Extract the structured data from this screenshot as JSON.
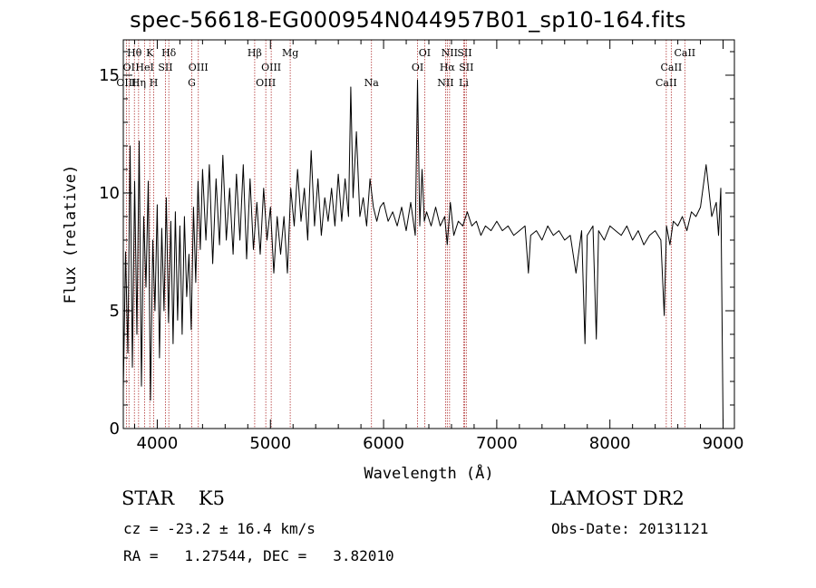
{
  "title": "spec-56618-EG000954N044957B01_sp10-164.fits",
  "info": {
    "class_line": "STAR    K5",
    "survey": "LAMOST DR2",
    "cz_line": "cz = -23.2 ± 16.4 km/s",
    "obs_date": "Obs-Date: 20131121",
    "coord_line": "RA =   1.27544, DEC =   3.82010"
  },
  "chart_data": {
    "type": "line",
    "title": "spec-56618-EG000954N044957B01_sp10-164.fits",
    "xlabel": "Wavelength (Å)",
    "ylabel": "Flux (relative)",
    "xlim": [
      3700,
      9100
    ],
    "ylim": [
      0,
      16.5
    ],
    "xticks": [
      4000,
      5000,
      6000,
      7000,
      8000,
      9000
    ],
    "yticks": [
      0,
      5,
      10,
      15
    ],
    "line_color": "#000000",
    "marker_color": "#b03030",
    "series": [
      {
        "x": [
          3700,
          3720,
          3740,
          3760,
          3780,
          3800,
          3820,
          3840,
          3860,
          3880,
          3900,
          3920,
          3940,
          3960,
          3980,
          4000,
          4020,
          4040,
          4060,
          4080,
          4100,
          4120,
          4140,
          4160,
          4180,
          4200,
          4220,
          4240,
          4260,
          4280,
          4300,
          4320,
          4340,
          4360,
          4380,
          4400,
          4430,
          4460,
          4490,
          4520,
          4550,
          4580,
          4610,
          4640,
          4670,
          4700,
          4730,
          4760,
          4790,
          4820,
          4850,
          4880,
          4910,
          4940,
          4970,
          5000,
          5030,
          5060,
          5090,
          5120,
          5150,
          5180,
          5210,
          5240,
          5270,
          5300,
          5330,
          5360,
          5390,
          5420,
          5450,
          5480,
          5510,
          5540,
          5570,
          5600,
          5630,
          5660,
          5690,
          5710,
          5730,
          5760,
          5790,
          5820,
          5850,
          5880,
          5910,
          5940,
          5970,
          6000,
          6040,
          6080,
          6120,
          6160,
          6200,
          6240,
          6280,
          6300,
          6320,
          6340,
          6360,
          6380,
          6420,
          6460,
          6500,
          6540,
          6563,
          6590,
          6620,
          6660,
          6700,
          6740,
          6780,
          6820,
          6860,
          6900,
          6950,
          7000,
          7050,
          7100,
          7150,
          7200,
          7250,
          7280,
          7300,
          7350,
          7400,
          7450,
          7500,
          7550,
          7600,
          7650,
          7700,
          7750,
          7780,
          7800,
          7850,
          7880,
          7900,
          7950,
          8000,
          8050,
          8100,
          8150,
          8200,
          8250,
          8300,
          8350,
          8400,
          8450,
          8480,
          8500,
          8530,
          8560,
          8600,
          8640,
          8680,
          8720,
          8760,
          8800,
          8850,
          8900,
          8940,
          8960,
          8980,
          9000
        ],
        "y": [
          1.6,
          7.5,
          3.2,
          12.0,
          2.6,
          10.5,
          4.0,
          12.2,
          1.8,
          9.0,
          6.0,
          10.5,
          1.2,
          8.0,
          5.0,
          9.5,
          3.0,
          8.5,
          5.0,
          9.8,
          4.5,
          8.8,
          3.6,
          9.2,
          4.6,
          8.6,
          4.0,
          9.0,
          5.6,
          7.4,
          4.2,
          9.4,
          6.2,
          10.5,
          7.6,
          11.0,
          8.0,
          11.2,
          7.0,
          10.6,
          7.8,
          11.6,
          8.0,
          10.2,
          7.4,
          10.8,
          8.0,
          11.2,
          7.2,
          10.6,
          7.6,
          9.6,
          7.4,
          10.2,
          8.0,
          9.4,
          6.6,
          9.0,
          7.4,
          9.0,
          6.6,
          10.2,
          8.6,
          11.0,
          8.8,
          10.2,
          8.0,
          11.8,
          8.6,
          10.6,
          8.2,
          9.8,
          8.8,
          10.2,
          8.6,
          10.8,
          8.8,
          10.6,
          9.0,
          14.5,
          9.8,
          12.6,
          9.0,
          9.8,
          8.6,
          10.6,
          9.4,
          8.8,
          9.4,
          9.6,
          8.8,
          9.2,
          8.6,
          9.4,
          8.4,
          9.6,
          8.2,
          14.8,
          8.6,
          11.0,
          8.8,
          9.2,
          8.6,
          9.4,
          8.6,
          9.0,
          7.8,
          9.6,
          8.2,
          8.8,
          8.6,
          9.2,
          8.6,
          8.8,
          8.2,
          8.6,
          8.4,
          8.8,
          8.4,
          8.6,
          8.2,
          8.4,
          8.6,
          6.6,
          8.2,
          8.4,
          8.0,
          8.6,
          8.2,
          8.4,
          8.0,
          8.2,
          6.6,
          8.4,
          3.6,
          8.2,
          8.6,
          3.8,
          8.4,
          8.0,
          8.6,
          8.4,
          8.2,
          8.6,
          8.0,
          8.4,
          7.8,
          8.2,
          8.4,
          8.0,
          4.8,
          8.6,
          7.8,
          8.8,
          8.6,
          9.0,
          8.4,
          9.2,
          9.0,
          9.4,
          11.2,
          9.0,
          9.6,
          8.2,
          10.2,
          0.2
        ]
      }
    ],
    "line_markers": [
      {
        "name": "Hθ",
        "wavelength": 3798,
        "row": 1
      },
      {
        "name": "OI",
        "wavelength": 3750,
        "row": 2
      },
      {
        "name": "OIII",
        "wavelength": 3727,
        "row": 3
      },
      {
        "name": "Hη",
        "wavelength": 3835,
        "row": 3
      },
      {
        "name": "K",
        "wavelength": 3934,
        "row": 1
      },
      {
        "name": "HeI",
        "wavelength": 3889,
        "row": 2
      },
      {
        "name": "H",
        "wavelength": 3969,
        "row": 3
      },
      {
        "name": "Hδ",
        "wavelength": 4102,
        "row": 1
      },
      {
        "name": "SII",
        "wavelength": 4072,
        "row": 2
      },
      {
        "name": "OIII",
        "wavelength": 4363,
        "row": 2
      },
      {
        "name": "G",
        "wavelength": 4305,
        "row": 3
      },
      {
        "name": "Hβ",
        "wavelength": 4861,
        "row": 1
      },
      {
        "name": "OIII",
        "wavelength": 5007,
        "row": 2
      },
      {
        "name": "OIII",
        "wavelength": 4959,
        "row": 3
      },
      {
        "name": "Mg",
        "wavelength": 5175,
        "row": 1
      },
      {
        "name": "Na",
        "wavelength": 5893,
        "row": 3
      },
      {
        "name": "OI",
        "wavelength": 6363,
        "row": 1
      },
      {
        "name": "OI",
        "wavelength": 6300,
        "row": 2
      },
      {
        "name": "NII",
        "wavelength": 6583,
        "row": 1
      },
      {
        "name": "SII",
        "wavelength": 6716,
        "row": 1
      },
      {
        "name": "Hα",
        "wavelength": 6563,
        "row": 2
      },
      {
        "name": "SII",
        "wavelength": 6731,
        "row": 2
      },
      {
        "name": "NII",
        "wavelength": 6548,
        "row": 3
      },
      {
        "name": "Li",
        "wavelength": 6708,
        "row": 3
      },
      {
        "name": "CaII",
        "wavelength": 8662,
        "row": 1
      },
      {
        "name": "CaII",
        "wavelength": 8542,
        "row": 2
      },
      {
        "name": "CaII",
        "wavelength": 8498,
        "row": 3
      }
    ]
  }
}
